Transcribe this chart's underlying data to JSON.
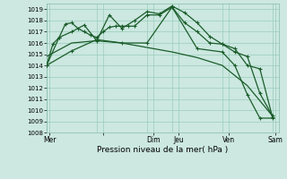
{
  "background_color": "#cce8e0",
  "grid_color": "#99ccbb",
  "line_color": "#1a5c2a",
  "marker_color": "#1a5c2a",
  "xlabel": "Pression niveau de la mer( hPa )",
  "ylim": [
    1008,
    1019.5
  ],
  "yticks": [
    1008,
    1009,
    1010,
    1011,
    1012,
    1013,
    1014,
    1015,
    1016,
    1017,
    1018,
    1019
  ],
  "xlim": [
    0,
    37
  ],
  "day_positions": [
    0.5,
    9,
    17,
    21,
    29,
    36.5
  ],
  "day_labels": [
    "Mer",
    "",
    "Dim",
    "Jeu",
    "Ven",
    "Sam"
  ],
  "vline_positions": [
    0,
    8,
    16,
    20,
    28,
    36
  ],
  "series1_x": [
    0,
    1,
    2,
    3,
    4,
    5,
    6,
    7,
    8,
    9,
    10,
    11,
    12,
    13,
    14,
    16,
    18,
    20,
    22,
    24,
    26,
    28,
    30,
    32,
    34,
    36
  ],
  "series1_y": [
    1014.0,
    1015.9,
    1016.5,
    1017.7,
    1017.8,
    1017.3,
    1017.0,
    1016.7,
    1016.5,
    1017.0,
    1017.4,
    1017.5,
    1017.5,
    1017.5,
    1017.5,
    1018.5,
    1018.5,
    1019.2,
    1017.8,
    1017.0,
    1016.0,
    1015.9,
    1015.5,
    1014.0,
    1013.7,
    1009.4
  ],
  "series2_x": [
    0,
    4,
    8,
    12,
    16,
    20,
    24,
    28,
    32,
    36
  ],
  "series2_y": [
    1014.8,
    1016.0,
    1016.2,
    1016.0,
    1015.6,
    1015.2,
    1014.7,
    1014.0,
    1012.2,
    1009.5
  ],
  "series3_x": [
    0,
    2,
    4,
    6,
    8,
    10,
    12,
    14,
    16,
    18,
    20,
    22,
    24,
    26,
    28,
    30,
    32,
    34,
    36
  ],
  "series3_y": [
    1014.0,
    1016.5,
    1017.0,
    1017.6,
    1016.2,
    1018.5,
    1017.3,
    1018.0,
    1018.8,
    1018.6,
    1019.3,
    1018.7,
    1017.8,
    1016.6,
    1015.9,
    1015.2,
    1014.8,
    1011.5,
    1009.5
  ],
  "series4_x": [
    0,
    4,
    8,
    12,
    16,
    20,
    24,
    28,
    30,
    32,
    34,
    36
  ],
  "series4_y": [
    1014.0,
    1015.3,
    1016.3,
    1016.0,
    1016.0,
    1019.2,
    1015.5,
    1015.2,
    1014.0,
    1011.4,
    1009.3,
    1009.3
  ]
}
